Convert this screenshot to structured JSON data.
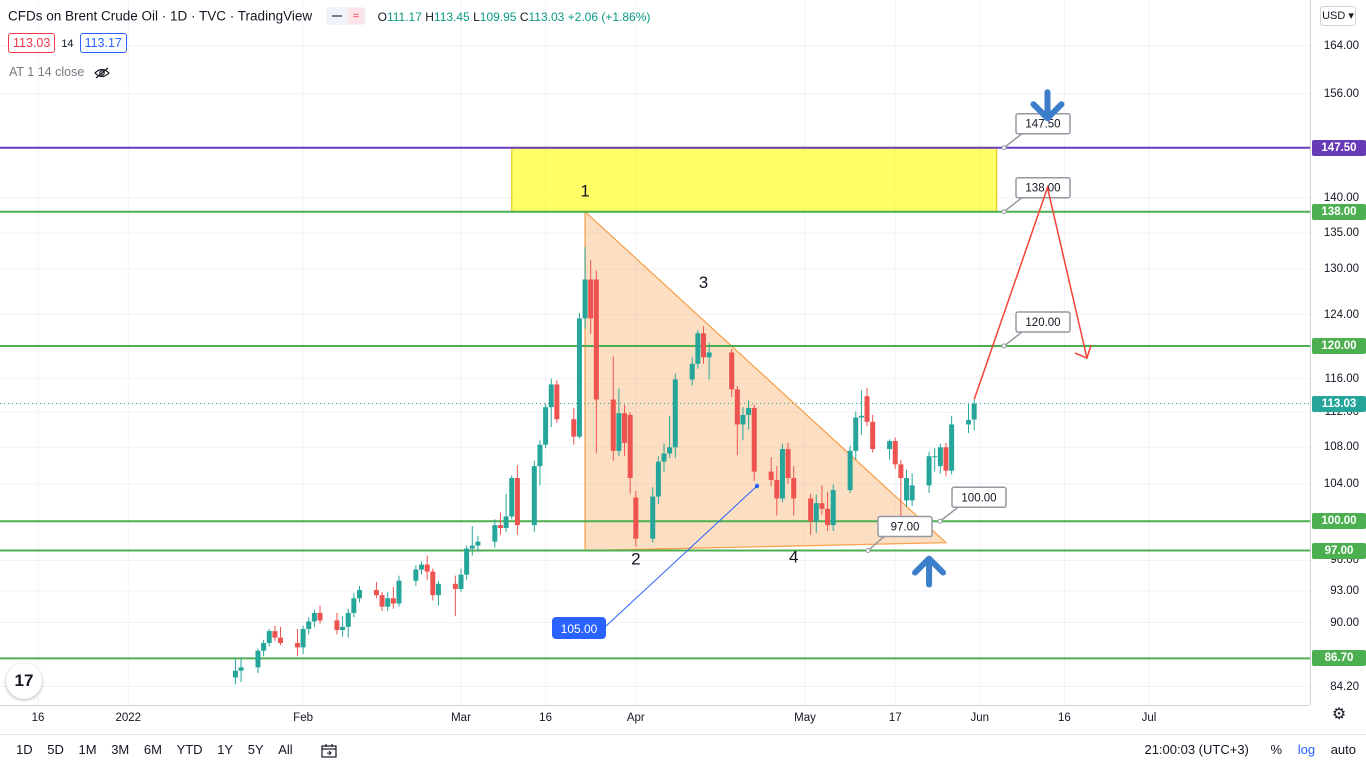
{
  "header": {
    "title": "CFDs on Brent Crude Oil · 1D · TVC · TradingView",
    "ohlc": {
      "o_label": "O",
      "o": "111.17",
      "h_label": "H",
      "h": "113.45",
      "l_label": "L",
      "l": "109.95",
      "c_label": "C",
      "c": "113.03",
      "change": "+2.06 (+1.86%)"
    },
    "bid": "113.03",
    "spread": "14",
    "ask": "113.17",
    "indicator": "AT 1 14 close"
  },
  "currency_button": "USD",
  "colors": {
    "up": "#26a69a",
    "down": "#ef5350",
    "level": "#4caf50",
    "resistance_top": "#673ab7",
    "zone": "#ffff00",
    "triangle": "#f7a350",
    "forecast": "#f44336",
    "arrow": "#3d7ecb",
    "trend": "#2962ff"
  },
  "chart_data": {
    "type": "candlestick",
    "y_scale": "log",
    "ylim": [
      82.6,
      172
    ],
    "price_ticks": [
      164.0,
      156.0,
      140.0,
      135.0,
      130.0,
      124.0,
      116.0,
      112.0,
      108.0,
      104.0,
      96.0,
      93.0,
      90.0,
      84.2
    ],
    "price_tick_labels": [
      "164.00",
      "156.00",
      "140.00",
      "135.00",
      "130.00",
      "124.00",
      "116.00",
      "112.00",
      "108.00",
      "104.00",
      "96.00",
      "93.00",
      "90.00",
      "84.20"
    ],
    "time_ticks": [
      {
        "date": "2021-12-16",
        "label": "16"
      },
      {
        "date": "2022-01-01",
        "label": "2022"
      },
      {
        "date": "2022-02-01",
        "label": "Feb"
      },
      {
        "date": "2022-03-01",
        "label": "Mar"
      },
      {
        "date": "2022-03-16",
        "label": "16"
      },
      {
        "date": "2022-04-01",
        "label": "Apr"
      },
      {
        "date": "2022-05-01",
        "label": "May"
      },
      {
        "date": "2022-05-17",
        "label": "17"
      },
      {
        "date": "2022-06-01",
        "label": "Jun"
      },
      {
        "date": "2022-06-16",
        "label": "16"
      },
      {
        "date": "2022-07-01",
        "label": "Jul"
      }
    ],
    "horizontal_levels": [
      {
        "value": 147.5,
        "label": "147.50",
        "color": "#673ab7",
        "callout": "147.50"
      },
      {
        "value": 138.0,
        "label": "138.00",
        "color": "#4caf50",
        "callout": "138.00"
      },
      {
        "value": 120.0,
        "label": "120.00",
        "color": "#4caf50",
        "callout": "120.00"
      },
      {
        "value": 100.0,
        "label": "100.00",
        "color": "#4caf50",
        "callout": "100.00"
      },
      {
        "value": 97.0,
        "label": "97.00",
        "color": "#4caf50",
        "callout": "97.00"
      },
      {
        "value": 86.7,
        "label": "86.70",
        "color": "#4caf50",
        "callout": ""
      }
    ],
    "last_price": {
      "value": 113.03,
      "label": "113.03"
    },
    "candles": [
      {
        "date": "2022-01-20",
        "o": 85.0,
        "h": 86.7,
        "l": 84.4,
        "c": 85.6
      },
      {
        "date": "2022-01-21",
        "o": 85.6,
        "h": 86.8,
        "l": 84.6,
        "c": 85.9
      },
      {
        "date": "2022-01-24",
        "o": 85.9,
        "h": 87.6,
        "l": 85.4,
        "c": 87.4
      },
      {
        "date": "2022-01-25",
        "o": 87.4,
        "h": 88.4,
        "l": 86.9,
        "c": 88.1
      },
      {
        "date": "2022-01-26",
        "o": 88.1,
        "h": 89.4,
        "l": 87.8,
        "c": 89.2
      },
      {
        "date": "2022-01-27",
        "o": 89.2,
        "h": 89.7,
        "l": 88.3,
        "c": 88.6
      },
      {
        "date": "2022-01-28",
        "o": 88.6,
        "h": 89.6,
        "l": 87.9,
        "c": 88.1
      },
      {
        "date": "2022-01-31",
        "o": 88.1,
        "h": 89.4,
        "l": 86.9,
        "c": 87.7
      },
      {
        "date": "2022-02-01",
        "o": 87.7,
        "h": 89.7,
        "l": 87.1,
        "c": 89.4
      },
      {
        "date": "2022-02-02",
        "o": 89.4,
        "h": 90.5,
        "l": 88.9,
        "c": 90.1
      },
      {
        "date": "2022-02-03",
        "o": 90.1,
        "h": 91.2,
        "l": 89.6,
        "c": 90.9
      },
      {
        "date": "2022-02-04",
        "o": 90.9,
        "h": 91.6,
        "l": 89.9,
        "c": 90.2
      },
      {
        "date": "2022-02-07",
        "o": 90.2,
        "h": 90.9,
        "l": 88.9,
        "c": 89.3
      },
      {
        "date": "2022-02-08",
        "o": 89.3,
        "h": 90.6,
        "l": 88.7,
        "c": 89.6
      },
      {
        "date": "2022-02-09",
        "o": 89.6,
        "h": 91.3,
        "l": 88.6,
        "c": 90.9
      },
      {
        "date": "2022-02-10",
        "o": 90.9,
        "h": 92.8,
        "l": 90.5,
        "c": 92.3
      },
      {
        "date": "2022-02-11",
        "o": 92.3,
        "h": 93.5,
        "l": 91.9,
        "c": 93.1
      },
      {
        "date": "2022-02-14",
        "o": 93.1,
        "h": 93.9,
        "l": 92.3,
        "c": 92.6
      },
      {
        "date": "2022-02-15",
        "o": 92.6,
        "h": 92.9,
        "l": 91.1,
        "c": 91.5
      },
      {
        "date": "2022-02-16",
        "o": 91.5,
        "h": 92.9,
        "l": 91.1,
        "c": 92.3
      },
      {
        "date": "2022-02-17",
        "o": 92.3,
        "h": 93.4,
        "l": 91.3,
        "c": 91.8
      },
      {
        "date": "2022-02-18",
        "o": 91.8,
        "h": 94.5,
        "l": 91.5,
        "c": 94.0
      },
      {
        "date": "2022-02-21",
        "o": 94.0,
        "h": 95.5,
        "l": 93.5,
        "c": 95.1
      },
      {
        "date": "2022-02-22",
        "o": 95.1,
        "h": 95.9,
        "l": 94.6,
        "c": 95.6
      },
      {
        "date": "2022-02-23",
        "o": 95.6,
        "h": 96.5,
        "l": 94.1,
        "c": 94.9
      },
      {
        "date": "2022-02-24",
        "o": 94.9,
        "h": 95.2,
        "l": 92.1,
        "c": 92.6
      },
      {
        "date": "2022-02-25",
        "o": 92.6,
        "h": 94.0,
        "l": 91.6,
        "c": 93.7
      },
      {
        "date": "2022-02-28",
        "o": 93.7,
        "h": 94.5,
        "l": 90.6,
        "c": 93.2
      },
      {
        "date": "2022-03-01",
        "o": 93.2,
        "h": 95.2,
        "l": 92.9,
        "c": 94.6
      },
      {
        "date": "2022-03-02",
        "o": 94.6,
        "h": 97.5,
        "l": 94.1,
        "c": 97.2
      },
      {
        "date": "2022-03-03",
        "o": 97.2,
        "h": 99.5,
        "l": 96.5,
        "c": 97.5
      },
      {
        "date": "2022-03-04",
        "o": 97.5,
        "h": 98.5,
        "l": 96.9,
        "c": 97.9
      },
      {
        "date": "2022-03-07",
        "o": 97.9,
        "h": 100.2,
        "l": 97.3,
        "c": 99.6
      },
      {
        "date": "2022-03-08",
        "o": 99.6,
        "h": 100.9,
        "l": 98.6,
        "c": 99.3
      },
      {
        "date": "2022-03-09",
        "o": 99.3,
        "h": 102.9,
        "l": 98.9,
        "c": 100.5
      },
      {
        "date": "2022-03-10",
        "o": 100.5,
        "h": 104.9,
        "l": 100.2,
        "c": 104.6
      },
      {
        "date": "2022-03-11",
        "o": 104.6,
        "h": 106.0,
        "l": 98.6,
        "c": 99.6
      },
      {
        "date": "2022-03-14",
        "o": 99.6,
        "h": 106.5,
        "l": 98.9,
        "c": 105.9
      },
      {
        "date": "2022-03-15",
        "o": 105.9,
        "h": 108.8,
        "l": 103.8,
        "c": 108.3
      },
      {
        "date": "2022-03-16",
        "o": 108.3,
        "h": 113.0,
        "l": 107.9,
        "c": 112.6
      },
      {
        "date": "2022-03-17",
        "o": 112.6,
        "h": 116.0,
        "l": 110.3,
        "c": 115.3
      },
      {
        "date": "2022-03-18",
        "o": 115.3,
        "h": 115.8,
        "l": 110.8,
        "c": 111.2
      },
      {
        "date": "2022-03-21",
        "o": 111.2,
        "h": 112.5,
        "l": 108.3,
        "c": 109.2
      },
      {
        "date": "2022-03-22",
        "o": 109.2,
        "h": 124.2,
        "l": 109.0,
        "c": 123.5
      },
      {
        "date": "2022-03-23",
        "o": 123.5,
        "h": 133.0,
        "l": 122.2,
        "c": 128.6
      },
      {
        "date": "2022-03-24",
        "o": 128.6,
        "h": 131.2,
        "l": 121.5,
        "c": 123.5
      },
      {
        "date": "2022-03-25",
        "o": 128.6,
        "h": 129.8,
        "l": 107.3,
        "c": 113.5
      },
      {
        "date": "2022-03-28",
        "o": 113.5,
        "h": 118.7,
        "l": 106.5,
        "c": 107.6
      },
      {
        "date": "2022-03-29",
        "o": 107.6,
        "h": 114.8,
        "l": 107.0,
        "c": 111.9
      },
      {
        "date": "2022-03-30",
        "o": 111.9,
        "h": 112.9,
        "l": 107.0,
        "c": 108.5
      },
      {
        "date": "2022-03-31",
        "o": 111.7,
        "h": 112.0,
        "l": 102.9,
        "c": 104.6
      },
      {
        "date": "2022-04-01",
        "o": 102.5,
        "h": 103.2,
        "l": 97.4,
        "c": 98.2
      },
      {
        "date": "2022-04-04",
        "o": 98.2,
        "h": 103.6,
        "l": 97.8,
        "c": 102.6
      },
      {
        "date": "2022-04-05",
        "o": 102.6,
        "h": 107.0,
        "l": 101.8,
        "c": 106.4
      },
      {
        "date": "2022-04-06",
        "o": 106.4,
        "h": 108.4,
        "l": 105.3,
        "c": 107.3
      },
      {
        "date": "2022-04-07",
        "o": 107.3,
        "h": 111.6,
        "l": 106.8,
        "c": 108.0
      },
      {
        "date": "2022-04-08",
        "o": 108.0,
        "h": 116.6,
        "l": 106.8,
        "c": 115.9
      },
      {
        "date": "2022-04-11",
        "o": 115.9,
        "h": 118.6,
        "l": 115.2,
        "c": 117.8
      },
      {
        "date": "2022-04-12",
        "o": 117.8,
        "h": 122.0,
        "l": 117.2,
        "c": 121.6
      },
      {
        "date": "2022-04-13",
        "o": 121.6,
        "h": 122.5,
        "l": 117.8,
        "c": 118.6
      },
      {
        "date": "2022-04-14",
        "o": 118.6,
        "h": 120.4,
        "l": 115.9,
        "c": 119.2
      },
      {
        "date": "2022-04-18",
        "o": 119.2,
        "h": 119.6,
        "l": 113.8,
        "c": 114.7
      },
      {
        "date": "2022-04-19",
        "o": 114.7,
        "h": 115.1,
        "l": 107.1,
        "c": 110.6
      },
      {
        "date": "2022-04-20",
        "o": 110.6,
        "h": 112.6,
        "l": 108.8,
        "c": 111.7
      },
      {
        "date": "2022-04-21",
        "o": 111.7,
        "h": 113.4,
        "l": 110.0,
        "c": 112.5
      },
      {
        "date": "2022-04-22",
        "o": 112.5,
        "h": 112.9,
        "l": 104.3,
        "c": 105.3
      },
      {
        "date": "2022-04-25",
        "o": 105.3,
        "h": 106.9,
        "l": 103.7,
        "c": 104.4
      },
      {
        "date": "2022-04-26",
        "o": 104.4,
        "h": 105.9,
        "l": 100.6,
        "c": 102.4
      },
      {
        "date": "2022-04-27",
        "o": 102.4,
        "h": 108.4,
        "l": 102.0,
        "c": 107.8
      },
      {
        "date": "2022-04-28",
        "o": 107.8,
        "h": 108.5,
        "l": 104.0,
        "c": 104.6
      },
      {
        "date": "2022-04-29",
        "o": 104.6,
        "h": 105.9,
        "l": 100.6,
        "c": 102.4
      },
      {
        "date": "2022-05-02",
        "o": 102.4,
        "h": 102.9,
        "l": 98.6,
        "c": 100.0
      },
      {
        "date": "2022-05-03",
        "o": 100.0,
        "h": 102.8,
        "l": 98.8,
        "c": 101.9
      },
      {
        "date": "2022-05-04",
        "o": 101.9,
        "h": 103.8,
        "l": 100.7,
        "c": 101.3
      },
      {
        "date": "2022-05-05",
        "o": 101.3,
        "h": 103.1,
        "l": 99.0,
        "c": 99.6
      },
      {
        "date": "2022-05-06",
        "o": 99.6,
        "h": 103.9,
        "l": 99.0,
        "c": 103.3
      },
      {
        "date": "2022-05-09",
        "o": 103.3,
        "h": 108.2,
        "l": 103.0,
        "c": 107.6
      },
      {
        "date": "2022-05-10",
        "o": 107.6,
        "h": 112.1,
        "l": 106.6,
        "c": 111.4
      },
      {
        "date": "2022-05-11",
        "o": 111.4,
        "h": 114.6,
        "l": 109.4,
        "c": 111.6
      },
      {
        "date": "2022-05-12",
        "o": 113.9,
        "h": 114.9,
        "l": 110.4,
        "c": 110.9
      },
      {
        "date": "2022-05-13",
        "o": 110.9,
        "h": 111.7,
        "l": 107.4,
        "c": 107.8
      },
      {
        "date": "2022-05-16",
        "o": 107.8,
        "h": 108.9,
        "l": 106.6,
        "c": 108.7
      },
      {
        "date": "2022-05-17",
        "o": 108.7,
        "h": 109.1,
        "l": 105.6,
        "c": 106.1
      },
      {
        "date": "2022-05-18",
        "o": 106.1,
        "h": 106.6,
        "l": 99.5,
        "c": 104.6
      },
      {
        "date": "2022-05-19",
        "o": 102.2,
        "h": 105.5,
        "l": 101.5,
        "c": 104.6
      },
      {
        "date": "2022-05-20",
        "o": 102.2,
        "h": 105.1,
        "l": 101.6,
        "c": 103.8
      },
      {
        "date": "2022-05-23",
        "o": 103.8,
        "h": 107.5,
        "l": 103.0,
        "c": 107.0
      },
      {
        "date": "2022-05-24",
        "o": 107.0,
        "h": 107.9,
        "l": 105.3,
        "c": 107.0
      },
      {
        "date": "2022-05-25",
        "o": 105.9,
        "h": 108.4,
        "l": 105.1,
        "c": 108.0
      },
      {
        "date": "2022-05-26",
        "o": 108.0,
        "h": 108.5,
        "l": 104.8,
        "c": 105.4
      },
      {
        "date": "2022-05-27",
        "o": 105.4,
        "h": 111.6,
        "l": 105.0,
        "c": 110.6
      },
      {
        "date": "2022-05-30",
        "o": 110.6,
        "h": 113.0,
        "l": 109.6,
        "c": 111.1
      },
      {
        "date": "2022-05-31",
        "o": 111.17,
        "h": 113.45,
        "l": 109.95,
        "c": 113.03
      }
    ],
    "annotations": {
      "wave_labels": [
        {
          "text": "1",
          "date": "2022-03-23",
          "price": 140.2
        },
        {
          "text": "2",
          "date": "2022-04-01",
          "price": 95.6
        },
        {
          "text": "3",
          "date": "2022-04-13",
          "price": 127.5
        },
        {
          "text": "4",
          "date": "2022-04-29",
          "price": 95.8
        }
      ],
      "zone": {
        "from_date": "2022-03-10",
        "to_date": "2022-06-04",
        "top": 147.5,
        "bottom": 138.0
      },
      "triangle": [
        {
          "date": "2022-03-23",
          "price": 138.0
        },
        {
          "date": "2022-05-26",
          "price": 97.8
        },
        {
          "date": "2022-03-23",
          "price": 97.0
        }
      ],
      "trend_label": "105.00",
      "forecast": [
        {
          "date": "2022-05-31",
          "price": 113.5
        },
        {
          "date": "2022-06-13",
          "price": 141.5
        },
        {
          "date": "2022-06-20",
          "price": 118.5
        }
      ],
      "down_arrow": {
        "date": "2022-06-13",
        "price": 154.0
      },
      "up_arrow": {
        "date": "2022-05-23",
        "price": 95.0
      }
    }
  },
  "timeframes": [
    "1D",
    "5D",
    "1M",
    "3M",
    "6M",
    "YTD",
    "1Y",
    "5Y",
    "All"
  ],
  "bottom": {
    "clock": "21:00:03 (UTC+3)",
    "percent": "%",
    "log": "log",
    "auto": "auto"
  },
  "logo_text": "17"
}
